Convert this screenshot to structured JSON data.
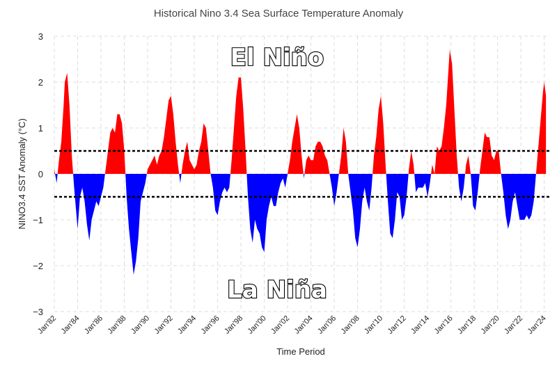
{
  "chart_data": {
    "type": "area",
    "title": "Historical Nino 3.4 Sea Surface Temperature Anomaly",
    "xlabel": "Time Period",
    "ylabel": "NINO3.4 SST Anomaly (°C)",
    "ylim": [
      -3,
      3
    ],
    "yticks": [
      "3",
      "2",
      "1",
      "0",
      "−1",
      "−2",
      "−3"
    ],
    "xlim": [
      1982.0,
      2024.5
    ],
    "xticks": [
      "Jan'82",
      "Jan'84",
      "Jan'86",
      "Jan'88",
      "Jan'90",
      "Jan'92",
      "Jan'94",
      "Jan'96",
      "Jan'98",
      "Jan'00",
      "Jan'02",
      "Jan'04",
      "Jan'06",
      "Jan'08",
      "Jan'10",
      "Jan'12",
      "Jan'14",
      "Jan'16",
      "Jan'18",
      "Jan'20",
      "Jan'22",
      "Jan'24"
    ],
    "thresholds": [
      0.5,
      -0.5
    ],
    "annotations": {
      "el_nino": "El Niño",
      "la_nina": "La Niña"
    },
    "colors": {
      "positive": "#ff0000",
      "negative": "#0000ff",
      "threshold": "#000000",
      "grid": "#dcdcdc"
    },
    "series": [
      {
        "name": "Nino 3.4 SST Anomaly",
        "points": [
          [
            1982.0,
            0.1
          ],
          [
            1982.2,
            -0.2
          ],
          [
            1982.4,
            0.3
          ],
          [
            1982.6,
            0.7
          ],
          [
            1982.8,
            1.5
          ],
          [
            1982.9,
            2.0
          ],
          [
            1983.1,
            2.2
          ],
          [
            1983.3,
            1.5
          ],
          [
            1983.5,
            0.4
          ],
          [
            1983.7,
            -0.3
          ],
          [
            1983.9,
            -0.9
          ],
          [
            1984.0,
            -1.2
          ],
          [
            1984.2,
            -0.5
          ],
          [
            1984.4,
            -0.3
          ],
          [
            1984.6,
            -0.6
          ],
          [
            1984.8,
            -1.1
          ],
          [
            1985.0,
            -1.45
          ],
          [
            1985.2,
            -1.0
          ],
          [
            1985.4,
            -0.8
          ],
          [
            1985.6,
            -0.6
          ],
          [
            1985.8,
            -0.7
          ],
          [
            1986.0,
            -0.5
          ],
          [
            1986.2,
            -0.3
          ],
          [
            1986.4,
            0.1
          ],
          [
            1986.6,
            0.5
          ],
          [
            1986.8,
            0.9
          ],
          [
            1987.0,
            1.0
          ],
          [
            1987.2,
            0.9
          ],
          [
            1987.4,
            1.3
          ],
          [
            1987.6,
            1.3
          ],
          [
            1987.8,
            1.1
          ],
          [
            1988.0,
            0.5
          ],
          [
            1988.2,
            -0.5
          ],
          [
            1988.4,
            -1.2
          ],
          [
            1988.6,
            -1.7
          ],
          [
            1988.8,
            -2.2
          ],
          [
            1989.0,
            -1.9
          ],
          [
            1989.2,
            -1.4
          ],
          [
            1989.4,
            -0.6
          ],
          [
            1989.6,
            -0.4
          ],
          [
            1989.8,
            -0.2
          ],
          [
            1990.0,
            0.1
          ],
          [
            1990.2,
            0.2
          ],
          [
            1990.4,
            0.3
          ],
          [
            1990.6,
            0.4
          ],
          [
            1990.8,
            0.2
          ],
          [
            1991.0,
            0.4
          ],
          [
            1991.2,
            0.5
          ],
          [
            1991.4,
            0.8
          ],
          [
            1991.6,
            1.2
          ],
          [
            1991.8,
            1.6
          ],
          [
            1992.0,
            1.7
          ],
          [
            1992.2,
            1.3
          ],
          [
            1992.4,
            0.7
          ],
          [
            1992.6,
            0.2
          ],
          [
            1992.8,
            -0.2
          ],
          [
            1993.0,
            0.2
          ],
          [
            1993.2,
            0.5
          ],
          [
            1993.4,
            0.7
          ],
          [
            1993.6,
            0.3
          ],
          [
            1993.8,
            0.2
          ],
          [
            1994.0,
            0.1
          ],
          [
            1994.2,
            0.2
          ],
          [
            1994.4,
            0.5
          ],
          [
            1994.6,
            0.7
          ],
          [
            1994.8,
            1.1
          ],
          [
            1995.0,
            1.0
          ],
          [
            1995.2,
            0.5
          ],
          [
            1995.4,
            0.0
          ],
          [
            1995.6,
            -0.3
          ],
          [
            1995.8,
            -0.8
          ],
          [
            1996.0,
            -0.9
          ],
          [
            1996.2,
            -0.6
          ],
          [
            1996.4,
            -0.4
          ],
          [
            1996.6,
            -0.3
          ],
          [
            1996.8,
            -0.4
          ],
          [
            1997.0,
            -0.3
          ],
          [
            1997.2,
            0.3
          ],
          [
            1997.4,
            1.0
          ],
          [
            1997.6,
            1.7
          ],
          [
            1997.8,
            2.1
          ],
          [
            1998.0,
            2.1
          ],
          [
            1998.2,
            1.4
          ],
          [
            1998.4,
            0.5
          ],
          [
            1998.6,
            -0.5
          ],
          [
            1998.8,
            -1.2
          ],
          [
            1999.0,
            -1.5
          ],
          [
            1999.2,
            -1.0
          ],
          [
            1999.4,
            -1.2
          ],
          [
            1999.6,
            -1.3
          ],
          [
            1999.8,
            -1.6
          ],
          [
            2000.0,
            -1.7
          ],
          [
            2000.2,
            -1.0
          ],
          [
            2000.4,
            -0.7
          ],
          [
            2000.6,
            -0.5
          ],
          [
            2000.8,
            -0.7
          ],
          [
            2001.0,
            -0.7
          ],
          [
            2001.2,
            -0.4
          ],
          [
            2001.4,
            -0.2
          ],
          [
            2001.6,
            -0.1
          ],
          [
            2001.8,
            -0.3
          ],
          [
            2002.0,
            0.0
          ],
          [
            2002.2,
            0.3
          ],
          [
            2002.4,
            0.7
          ],
          [
            2002.6,
            1.0
          ],
          [
            2002.8,
            1.3
          ],
          [
            2003.0,
            1.0
          ],
          [
            2003.2,
            0.4
          ],
          [
            2003.4,
            -0.1
          ],
          [
            2003.6,
            0.3
          ],
          [
            2003.8,
            0.4
          ],
          [
            2004.0,
            0.3
          ],
          [
            2004.2,
            0.3
          ],
          [
            2004.4,
            0.6
          ],
          [
            2004.6,
            0.7
          ],
          [
            2004.8,
            0.7
          ],
          [
            2005.0,
            0.6
          ],
          [
            2005.2,
            0.4
          ],
          [
            2005.4,
            0.3
          ],
          [
            2005.6,
            0.0
          ],
          [
            2005.8,
            -0.3
          ],
          [
            2006.0,
            -0.7
          ],
          [
            2006.2,
            -0.4
          ],
          [
            2006.4,
            0.0
          ],
          [
            2006.6,
            0.4
          ],
          [
            2006.8,
            1.0
          ],
          [
            2007.0,
            0.7
          ],
          [
            2007.2,
            0.0
          ],
          [
            2007.4,
            -0.4
          ],
          [
            2007.6,
            -0.8
          ],
          [
            2007.8,
            -1.4
          ],
          [
            2008.0,
            -1.6
          ],
          [
            2008.2,
            -1.2
          ],
          [
            2008.4,
            -0.6
          ],
          [
            2008.6,
            -0.3
          ],
          [
            2008.8,
            -0.6
          ],
          [
            2009.0,
            -0.8
          ],
          [
            2009.2,
            -0.3
          ],
          [
            2009.4,
            0.4
          ],
          [
            2009.6,
            0.8
          ],
          [
            2009.8,
            1.4
          ],
          [
            2010.0,
            1.7
          ],
          [
            2010.2,
            1.1
          ],
          [
            2010.4,
            0.2
          ],
          [
            2010.6,
            -0.6
          ],
          [
            2010.8,
            -1.3
          ],
          [
            2011.0,
            -1.4
          ],
          [
            2011.2,
            -1.0
          ],
          [
            2011.4,
            -0.4
          ],
          [
            2011.6,
            -0.5
          ],
          [
            2011.8,
            -1.0
          ],
          [
            2012.0,
            -0.9
          ],
          [
            2012.2,
            -0.5
          ],
          [
            2012.4,
            0.1
          ],
          [
            2012.6,
            0.5
          ],
          [
            2012.8,
            0.2
          ],
          [
            2013.0,
            -0.4
          ],
          [
            2013.2,
            -0.3
          ],
          [
            2013.4,
            -0.3
          ],
          [
            2013.6,
            -0.3
          ],
          [
            2013.8,
            -0.2
          ],
          [
            2014.0,
            -0.5
          ],
          [
            2014.2,
            -0.2
          ],
          [
            2014.4,
            0.2
          ],
          [
            2014.6,
            0.0
          ],
          [
            2014.8,
            0.6
          ],
          [
            2015.0,
            0.5
          ],
          [
            2015.2,
            0.6
          ],
          [
            2015.4,
            1.0
          ],
          [
            2015.6,
            1.5
          ],
          [
            2015.8,
            2.3
          ],
          [
            2015.9,
            2.7
          ],
          [
            2016.1,
            2.4
          ],
          [
            2016.3,
            1.4
          ],
          [
            2016.5,
            0.4
          ],
          [
            2016.7,
            -0.3
          ],
          [
            2016.9,
            -0.6
          ],
          [
            2017.1,
            -0.3
          ],
          [
            2017.3,
            0.2
          ],
          [
            2017.5,
            0.4
          ],
          [
            2017.7,
            0.0
          ],
          [
            2017.9,
            -0.7
          ],
          [
            2018.1,
            -0.8
          ],
          [
            2018.3,
            -0.4
          ],
          [
            2018.5,
            0.1
          ],
          [
            2018.7,
            0.5
          ],
          [
            2018.9,
            0.9
          ],
          [
            2019.1,
            0.8
          ],
          [
            2019.3,
            0.8
          ],
          [
            2019.5,
            0.4
          ],
          [
            2019.7,
            0.3
          ],
          [
            2019.9,
            0.5
          ],
          [
            2020.1,
            0.5
          ],
          [
            2020.3,
            0.0
          ],
          [
            2020.5,
            -0.4
          ],
          [
            2020.7,
            -0.9
          ],
          [
            2020.9,
            -1.2
          ],
          [
            2021.1,
            -1.0
          ],
          [
            2021.3,
            -0.6
          ],
          [
            2021.5,
            -0.4
          ],
          [
            2021.7,
            -0.7
          ],
          [
            2021.9,
            -1.0
          ],
          [
            2022.1,
            -1.0
          ],
          [
            2022.3,
            -1.0
          ],
          [
            2022.5,
            -0.9
          ],
          [
            2022.7,
            -1.0
          ],
          [
            2022.9,
            -0.9
          ],
          [
            2023.1,
            -0.6
          ],
          [
            2023.3,
            0.0
          ],
          [
            2023.5,
            0.6
          ],
          [
            2023.7,
            1.2
          ],
          [
            2023.9,
            1.8
          ],
          [
            2024.0,
            2.0
          ],
          [
            2024.15,
            1.7
          ]
        ]
      }
    ]
  }
}
